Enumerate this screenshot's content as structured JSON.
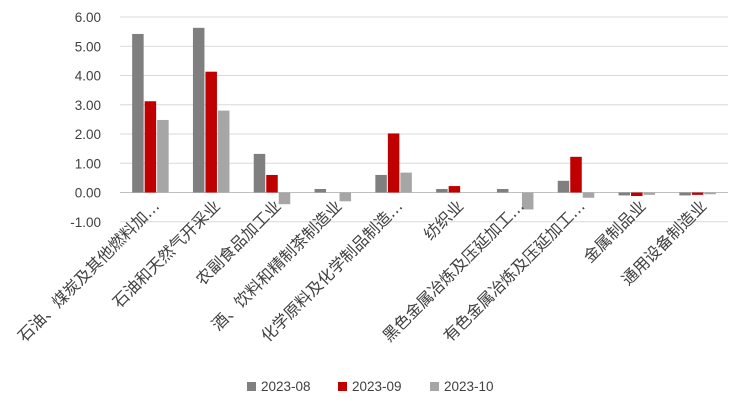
{
  "chart_data": {
    "type": "bar",
    "categories": [
      "石油、煤炭及其他燃料加…",
      "石油和天然气开采业",
      "农副食品加工业",
      "酒、饮料和精制茶制造业",
      "化学原料及化学制品制造…",
      "纺织业",
      "黑色金属冶炼及压延加工…",
      "有色金属冶炼及压延加工…",
      "金属制品业",
      "通用设备制造业"
    ],
    "series": [
      {
        "name": "2023-08",
        "color": "#7f7f7f",
        "values": [
          5.42,
          5.63,
          1.32,
          0.12,
          0.6,
          0.12,
          0.12,
          0.4,
          -0.1,
          -0.1
        ]
      },
      {
        "name": "2023-09",
        "color": "#c00000",
        "values": [
          3.12,
          4.13,
          0.6,
          0.0,
          2.02,
          0.22,
          0.0,
          1.22,
          -0.12,
          -0.08
        ]
      },
      {
        "name": "2023-10",
        "color": "#a6a6a6",
        "values": [
          2.48,
          2.8,
          -0.4,
          -0.3,
          0.68,
          0.0,
          -0.58,
          -0.18,
          -0.08,
          -0.06
        ]
      }
    ],
    "yticks": [
      "6.00",
      "5.00",
      "4.00",
      "3.00",
      "2.00",
      "1.00",
      "0.00",
      "-1.00"
    ],
    "ylim": [
      -1,
      6
    ],
    "grid": true,
    "legend_position": "bottom",
    "title": "",
    "xlabel": "",
    "ylabel": ""
  }
}
